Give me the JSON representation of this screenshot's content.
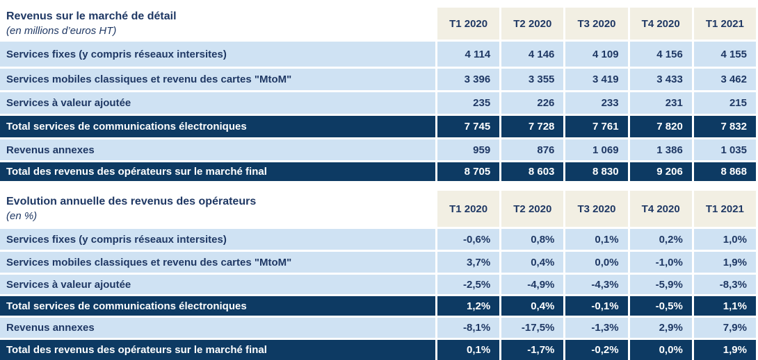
{
  "colors": {
    "navy_text": "#1f3864",
    "total_row_bg": "#0d3a63",
    "data_row_bg": "#cfe2f3",
    "header_bg": "#f2efe3",
    "background": "#ffffff"
  },
  "columns": [
    "T1 2020",
    "T2 2020",
    "T3 2020",
    "T4 2020",
    "T1 2021"
  ],
  "table1": {
    "title": "Revenus sur le marché de détail",
    "subtitle": "(en millions d’euros HT)",
    "rows": [
      {
        "label": "Services fixes (y compris réseaux intersites)",
        "values": [
          "4 114",
          "4 146",
          "4 109",
          "4 156",
          "4 155"
        ],
        "emphasis": false
      },
      {
        "label": "Services mobiles classiques et revenu des cartes \"MtoM\"",
        "values": [
          "3 396",
          "3 355",
          "3 419",
          "3 433",
          "3 462"
        ],
        "emphasis": false
      },
      {
        "label": "Services à valeur ajoutée",
        "values": [
          "235",
          "226",
          "233",
          "231",
          "215"
        ],
        "emphasis": false
      },
      {
        "label": "Total services de communications électroniques",
        "values": [
          "7 745",
          "7 728",
          "7 761",
          "7 820",
          "7 832"
        ],
        "emphasis": true
      },
      {
        "label": "Revenus annexes",
        "values": [
          "959",
          "876",
          "1 069",
          "1 386",
          "1 035"
        ],
        "emphasis": false
      },
      {
        "label": "Total des revenus des opérateurs sur le marché final",
        "values": [
          "8 705",
          "8 603",
          "8 830",
          "9 206",
          "8 868"
        ],
        "emphasis": true
      }
    ]
  },
  "table2": {
    "title": "Evolution annuelle des revenus des opérateurs",
    "subtitle": "(en %)",
    "rows": [
      {
        "label": "Services fixes (y compris réseaux intersites)",
        "values": [
          "-0,6%",
          "0,8%",
          "0,1%",
          "0,2%",
          "1,0%"
        ],
        "emphasis": false
      },
      {
        "label": "Services mobiles classiques et revenu des cartes \"MtoM\"",
        "values": [
          "3,7%",
          "0,4%",
          "0,0%",
          "-1,0%",
          "1,9%"
        ],
        "emphasis": false
      },
      {
        "label": "Services à valeur ajoutée",
        "values": [
          "-2,5%",
          "-4,9%",
          "-4,3%",
          "-5,9%",
          "-8,3%"
        ],
        "emphasis": false
      },
      {
        "label": "Total services de communications électroniques",
        "values": [
          "1,2%",
          "0,4%",
          "-0,1%",
          "-0,5%",
          "1,1%"
        ],
        "emphasis": true
      },
      {
        "label": "Revenus annexes",
        "values": [
          "-8,1%",
          "-17,5%",
          "-1,3%",
          "2,9%",
          "7,9%"
        ],
        "emphasis": false
      },
      {
        "label": "Total des revenus des opérateurs sur le marché final",
        "values": [
          "0,1%",
          "-1,7%",
          "-0,2%",
          "0,0%",
          "1,9%"
        ],
        "emphasis": true
      }
    ]
  }
}
